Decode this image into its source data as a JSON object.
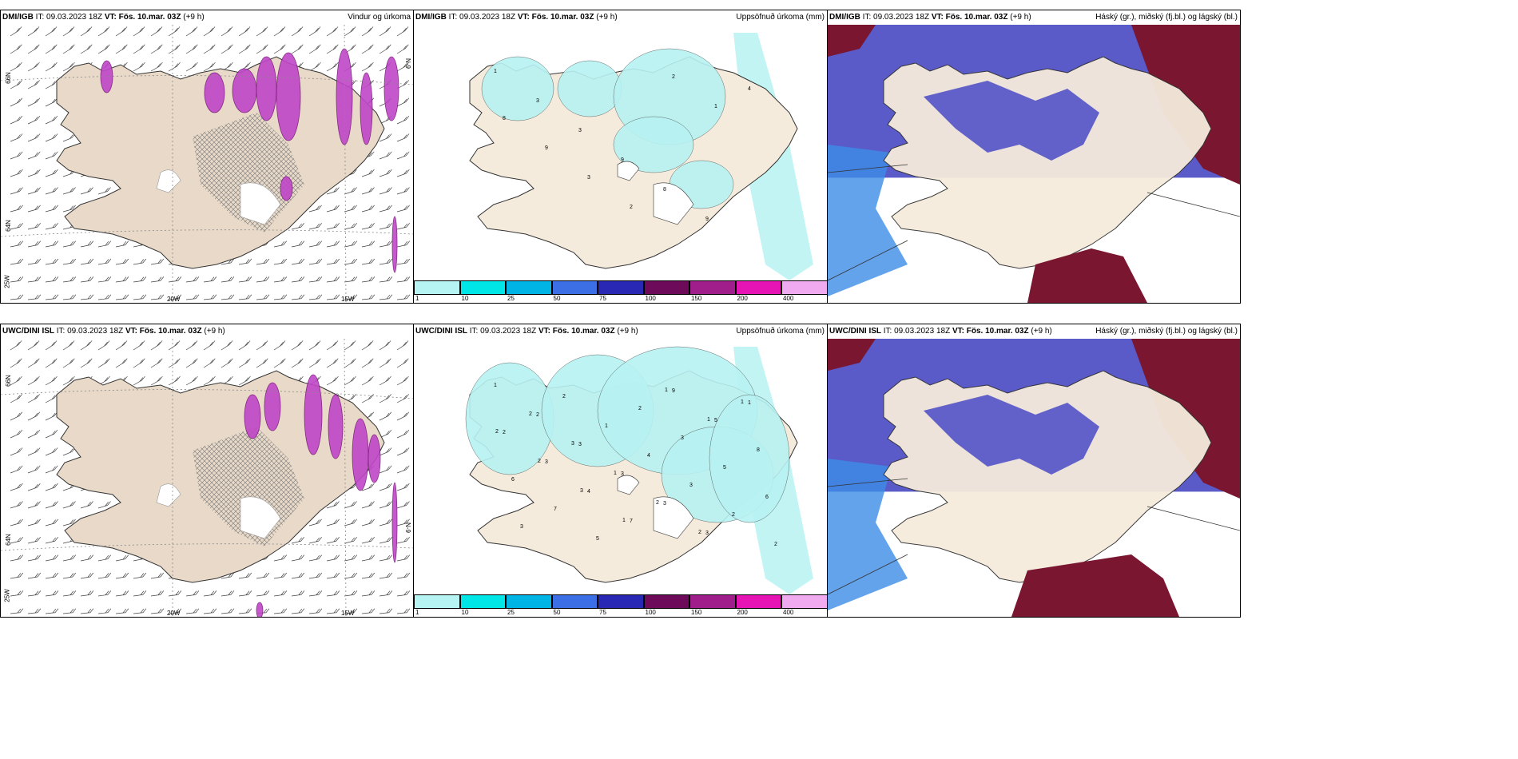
{
  "panels": {
    "p1": {
      "model": "DMI/IGB",
      "it_label": "IT:",
      "it": "09.03.2023 18Z",
      "vt_label": "VT:",
      "vt": "Fös. 10.mar. 03Z",
      "offset": "(+9 h)",
      "title": "Vindur og úrkoma"
    },
    "p2": {
      "model": "DMI/IGB",
      "it_label": "IT:",
      "it": "09.03.2023 18Z",
      "vt_label": "VT:",
      "vt": "Fös. 10.mar. 03Z",
      "offset": "(+9 h)",
      "title": "Uppsöfnuð úrkoma (mm)"
    },
    "p3": {
      "model": "DMI/IGB",
      "it_label": "IT:",
      "it": "09.03.2023 18Z",
      "vt_label": "VT:",
      "vt": "Fös. 10.mar. 03Z",
      "offset": "(+9 h)",
      "title": "Háský (gr.), miðský (fj.bl.) og lágský (bl.)"
    },
    "p4": {
      "model": "UWC/DINI ISL",
      "it_label": "IT:",
      "it": "09.03.2023 18Z",
      "vt_label": "VT:",
      "vt": "Fös. 10.mar. 03Z",
      "offset": "(+9 h)",
      "title": ""
    },
    "p5": {
      "model": "UWC/DINI ISL",
      "it_label": "IT:",
      "it": "09.03.2023 18Z",
      "vt_label": "VT:",
      "vt": "Fös. 10.mar. 03Z",
      "offset": "(+9 h)",
      "title": "Uppsöfnuð úrkoma (mm)"
    },
    "p6": {
      "model": "UWC/DINI ISL",
      "it_label": "IT:",
      "it": "09.03.2023 18Z",
      "vt_label": "VT:",
      "vt": "Fös. 10.mar. 03Z",
      "offset": "(+9 h)",
      "title": "Háský (gr.), miðský (fj.bl.) og lágský (bl.)"
    }
  },
  "axes": {
    "lon_20w": "20W",
    "lon_15w": "15W",
    "lat_66n": "66N",
    "lat_64n": "64N",
    "lat_n9": "N-9",
    "lon_25w": "25W"
  },
  "colorbar": {
    "ticks": [
      "1",
      "10",
      "25",
      "50",
      "75",
      "100",
      "150",
      "200",
      "400"
    ],
    "colors": [
      "#b6f4f4",
      "#00e6e6",
      "#00b4e6",
      "#3c6ee6",
      "#2828b4",
      "#6e0a5a",
      "#a01e8c",
      "#e614b4",
      "#f0aaf0"
    ]
  },
  "precip_labels": {
    "top": [
      "1",
      "3",
      "3",
      "9",
      "8",
      "9",
      "4",
      "8",
      "9",
      "3",
      "2",
      "2",
      "1"
    ],
    "bottom": [
      "1",
      "2",
      "3",
      "3",
      "3",
      "3",
      "1",
      "2",
      "3",
      "4",
      "7",
      "9",
      "5",
      "8",
      "6",
      "7",
      "5",
      "2",
      "3",
      "5",
      "6",
      "3",
      "2",
      "1",
      "4",
      "3",
      "2",
      "2",
      "2",
      "3",
      "1",
      "2",
      "2",
      "1",
      "2",
      "2",
      "3",
      "1",
      "1",
      "1"
    ]
  },
  "colors": {
    "land": "#f5ebdc",
    "land_fill_wind": "#e8d9c8",
    "precip_light": "#b8f2f2",
    "cloud_high": "#7a1630",
    "cloud_mid": "#5a5ac8",
    "cloud_low": "#3c8ce6"
  }
}
